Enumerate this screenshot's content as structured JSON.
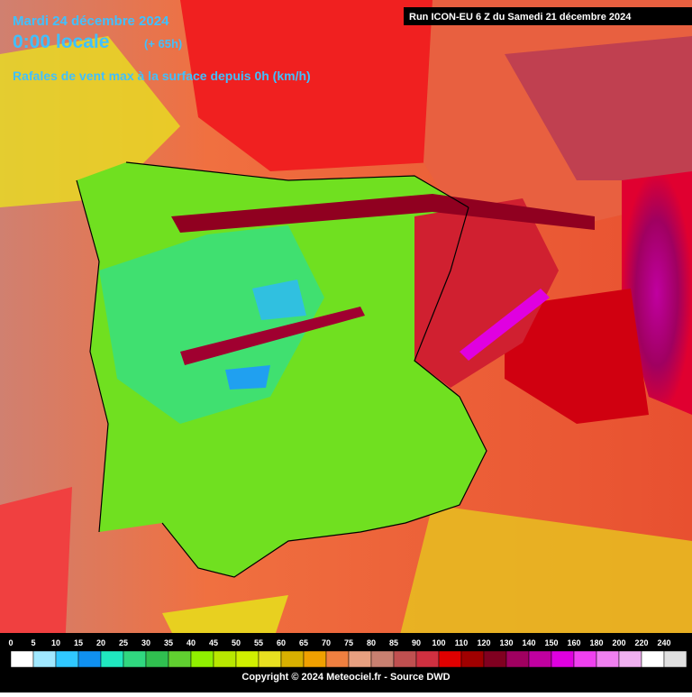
{
  "header": {
    "date": "Mardi 24 décembre 2024",
    "time": "0:00 locale",
    "offset": "(+ 65h)",
    "subtitle": "Rafales de vent max à la surface depuis 0h (km/h)",
    "run": "Run ICON-EU 6 Z du Samedi 21 décembre 2024"
  },
  "legend": {
    "labels": [
      0,
      5,
      10,
      15,
      20,
      25,
      30,
      35,
      40,
      45,
      50,
      55,
      60,
      65,
      70,
      75,
      80,
      85,
      90,
      100,
      110,
      120,
      130,
      140,
      150,
      160,
      180,
      200,
      220,
      240
    ],
    "colors": [
      "#ffffff",
      "#a0e8ff",
      "#30c8ff",
      "#1090f0",
      "#20e8c0",
      "#30d880",
      "#30c050",
      "#60d030",
      "#90f000",
      "#b8e800",
      "#d0f000",
      "#e8e020",
      "#d8b000",
      "#f0a000",
      "#f08040",
      "#e8a080",
      "#c88070",
      "#c05050",
      "#d03040",
      "#e00000",
      "#a00000",
      "#800020",
      "#a00060",
      "#c000a0",
      "#e000e0",
      "#f040f0",
      "#f080f0",
      "#f0b0f0",
      "#ffffff",
      "#e0e0e0"
    ]
  },
  "footer": {
    "copyright": "Copyright © 2024 Meteociel.fr - Source DWD"
  }
}
